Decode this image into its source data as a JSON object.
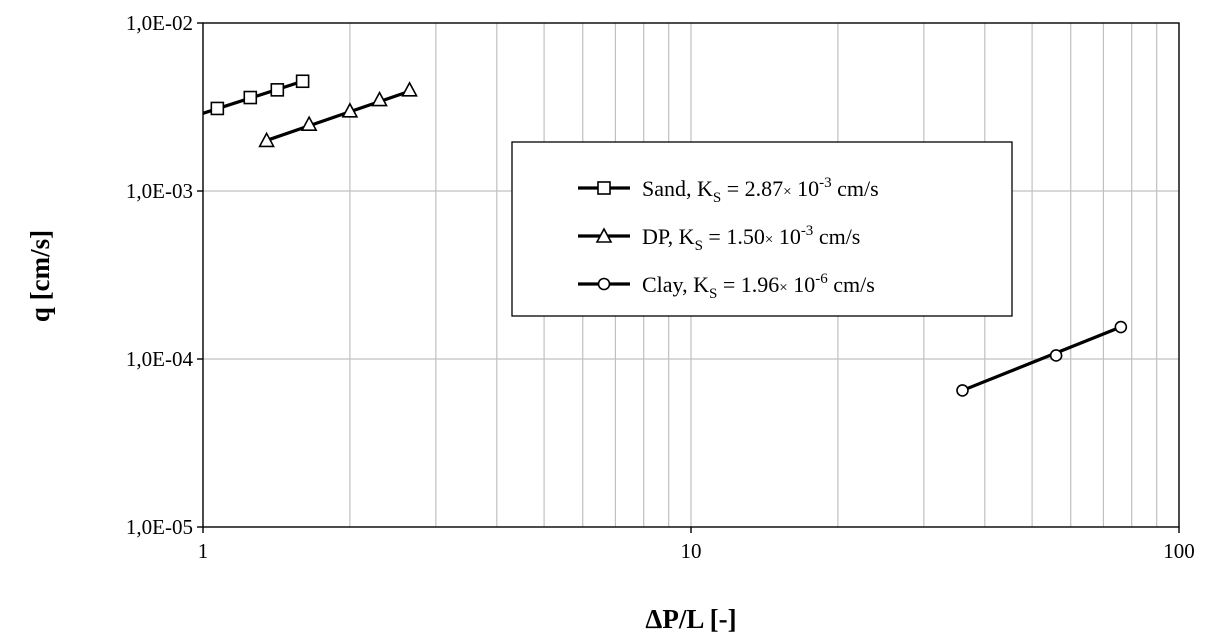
{
  "chart_data": {
    "type": "scatter",
    "xlabel": "ΔP/L [-]",
    "ylabel": "q [cm/s]",
    "x_scale": "log",
    "y_scale": "log",
    "xlim": [
      1,
      100
    ],
    "ylim": [
      1e-05,
      0.01
    ],
    "x_tick_labels": [
      "1",
      "10",
      "100"
    ],
    "y_tick_labels": [
      "1,0E-05",
      "1,0E-04",
      "1,0E-03",
      "1,0E-02"
    ],
    "grid": true,
    "legend_placement": "center",
    "series": [
      {
        "name": "Sand, K",
        "name_subscript": "S",
        "name_value": " = 2.87",
        "name_times": "×",
        "name_base": " 10",
        "name_exponent": "-3",
        "name_unit": " cm/s",
        "marker": "square",
        "x": [
          1.07,
          1.25,
          1.42,
          1.6
        ],
        "y": [
          0.0031,
          0.0036,
          0.004,
          0.0045
        ],
        "fit_line": {
          "x": [
            1.0,
            1.6
          ],
          "y": [
            0.0029,
            0.0045
          ]
        }
      },
      {
        "name": "DP, K",
        "name_subscript": "S",
        "name_value": " = 1.50",
        "name_times": "×",
        "name_base": " 10",
        "name_exponent": "-3",
        "name_unit": " cm/s",
        "marker": "triangle",
        "x": [
          1.35,
          1.65,
          2.0,
          2.3,
          2.65
        ],
        "y": [
          0.002,
          0.0025,
          0.003,
          0.0035,
          0.004
        ],
        "fit_line": {
          "x": [
            1.35,
            2.7
          ],
          "y": [
            0.002,
            0.004
          ]
        }
      },
      {
        "name": "Clay, K",
        "name_subscript": "S",
        "name_value": " = 1.96",
        "name_times": "×",
        "name_base": " 10",
        "name_exponent": "-6",
        "name_unit": " cm/s",
        "marker": "circle",
        "x": [
          36,
          56,
          76
        ],
        "y": [
          6.5e-05,
          0.000105,
          0.000155
        ],
        "fit_line": {
          "x": [
            36,
            76
          ],
          "y": [
            6.5e-05,
            0.000155
          ]
        }
      }
    ]
  }
}
